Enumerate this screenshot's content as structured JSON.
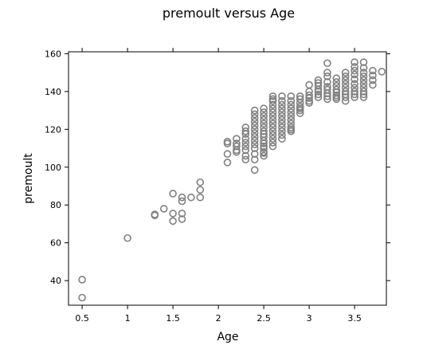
{
  "chart_data": {
    "type": "scatter",
    "title": "premoult versus Age",
    "xlabel": "Age",
    "ylabel": "premoult",
    "xlim": [
      0.35,
      3.85
    ],
    "ylim": [
      27,
      161
    ],
    "xticks": [
      0.5,
      1,
      1.5,
      2,
      2.5,
      3,
      3.5
    ],
    "xtick_labels": [
      "0.5",
      "1",
      "1.5",
      "2",
      "2.5",
      "3",
      "3.5"
    ],
    "yticks": [
      40,
      60,
      80,
      100,
      120,
      140,
      160
    ],
    "ytick_labels": [
      "40",
      "60",
      "80",
      "100",
      "120",
      "140",
      "160"
    ],
    "grid": false,
    "marker": "open-circle",
    "marker_color": "#808080",
    "series": [
      {
        "x": [
          0.5,
          0.5,
          1.0,
          1.3,
          1.3,
          1.4,
          1.5,
          1.5,
          1.5,
          1.6,
          1.6,
          1.6,
          1.6,
          1.7,
          1.8,
          1.8,
          1.8,
          2.1,
          2.1,
          2.1,
          2.1,
          2.2,
          2.2,
          2.2,
          2.2,
          2.2,
          2.3,
          2.3,
          2.3,
          2.3,
          2.3,
          2.3,
          2.3,
          2.3,
          2.3,
          2.4,
          2.4,
          2.4,
          2.4,
          2.4,
          2.4,
          2.4,
          2.4,
          2.4,
          2.4,
          2.4,
          2.4,
          2.4,
          2.4,
          2.5,
          2.5,
          2.5,
          2.5,
          2.5,
          2.5,
          2.5,
          2.5,
          2.5,
          2.5,
          2.5,
          2.5,
          2.5,
          2.5,
          2.5,
          2.5,
          2.6,
          2.6,
          2.6,
          2.6,
          2.6,
          2.6,
          2.6,
          2.6,
          2.6,
          2.6,
          2.6,
          2.6,
          2.6,
          2.6,
          2.6,
          2.7,
          2.7,
          2.7,
          2.7,
          2.7,
          2.7,
          2.7,
          2.7,
          2.7,
          2.7,
          2.7,
          2.7,
          2.8,
          2.8,
          2.8,
          2.8,
          2.8,
          2.8,
          2.8,
          2.8,
          2.8,
          2.8,
          2.8,
          2.9,
          2.9,
          2.9,
          2.9,
          2.9,
          2.9,
          2.9,
          3.0,
          3.0,
          3.0,
          3.0,
          3.0,
          3.0,
          3.1,
          3.1,
          3.1,
          3.1,
          3.1,
          3.1,
          3.1,
          3.2,
          3.2,
          3.2,
          3.2,
          3.2,
          3.2,
          3.2,
          3.2,
          3.2,
          3.3,
          3.3,
          3.3,
          3.3,
          3.3,
          3.3,
          3.3,
          3.3,
          3.4,
          3.4,
          3.4,
          3.4,
          3.4,
          3.4,
          3.4,
          3.4,
          3.4,
          3.5,
          3.5,
          3.5,
          3.5,
          3.5,
          3.5,
          3.5,
          3.5,
          3.5,
          3.5,
          3.6,
          3.6,
          3.6,
          3.6,
          3.6,
          3.6,
          3.6,
          3.6,
          3.6,
          3.6,
          3.7,
          3.7,
          3.7,
          3.7,
          3.8
        ],
        "y": [
          40.5,
          31,
          62.5,
          75,
          74.5,
          78,
          86,
          75.5,
          71.5,
          84,
          82,
          75.5,
          72.5,
          84,
          92,
          88,
          84,
          113.5,
          112.5,
          107,
          102.5,
          115,
          112.5,
          111,
          109,
          108,
          121,
          119,
          117.5,
          115,
          113,
          111,
          109,
          106,
          104,
          130,
          128,
          126,
          124,
          122,
          120,
          118,
          116,
          114,
          112,
          110,
          107,
          104,
          98.5,
          131,
          129,
          127,
          125,
          123,
          121,
          119,
          117.5,
          116,
          114,
          112.5,
          111,
          110,
          108,
          107.5,
          106,
          137.5,
          136,
          135,
          133,
          131,
          129,
          127,
          125,
          123,
          121,
          119,
          117,
          115,
          113,
          111,
          137.5,
          135,
          133,
          131,
          129,
          127,
          125,
          123,
          121,
          119,
          117,
          115,
          137.5,
          135,
          133,
          131,
          129,
          127,
          125,
          123,
          121,
          120,
          119,
          137.5,
          136,
          134,
          132,
          131,
          130,
          128.5,
          143.5,
          140,
          138,
          136.5,
          135,
          134,
          146,
          144.5,
          143,
          141,
          140,
          138.5,
          137,
          155,
          150,
          148,
          145,
          142.5,
          141,
          139,
          137.5,
          136,
          147,
          145,
          143,
          141,
          139.5,
          138,
          137,
          136,
          150,
          148,
          146,
          144,
          142,
          140,
          138.5,
          137,
          135,
          155.5,
          153,
          151,
          149,
          146.5,
          144,
          142,
          140,
          138.5,
          137,
          155.5,
          152.5,
          150,
          148,
          146,
          144,
          142,
          140,
          138.5,
          137,
          151,
          148.5,
          146,
          143.5,
          150.5
        ]
      }
    ]
  }
}
